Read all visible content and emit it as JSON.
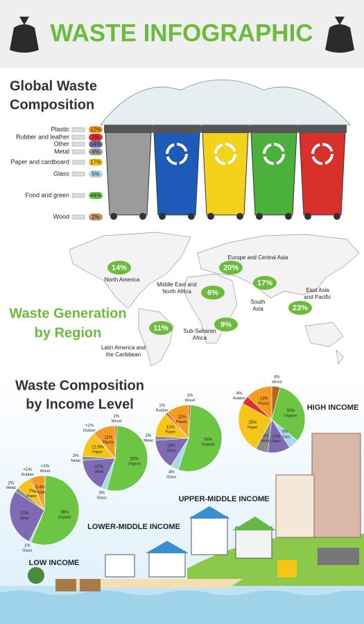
{
  "header": {
    "title": "WASTE INFOGRAPHIC"
  },
  "composition": {
    "title_lines": [
      "Global Waste",
      "Composition"
    ],
    "items": [
      {
        "label": "Plastic",
        "value": "12%",
        "color": "#f39c1f"
      },
      {
        "label": "Rubber and leather",
        "value": "2%",
        "color": "#d9342b"
      },
      {
        "label": "Other",
        "value": "14%",
        "color": "#7f6bb3"
      },
      {
        "label": "Metal",
        "value": "4%",
        "color": "#9a9a9a"
      },
      {
        "label": "Paper and cardboard",
        "value": "17%",
        "color": "#f5c518"
      },
      {
        "label": "Glass",
        "value": "5%",
        "color": "#a9d8ea"
      },
      {
        "label": "Food and green",
        "value": "44%",
        "color": "#6cc644"
      },
      {
        "label": "Wood",
        "value": "2%",
        "color": "#c8955e"
      }
    ]
  },
  "regions": {
    "title_lines": [
      "Waste Generation",
      "by Region"
    ],
    "items": [
      {
        "name_lines": [
          "North America"
        ],
        "value": "14%"
      },
      {
        "name_lines": [
          "Europe and Central Asia"
        ],
        "value": "20%"
      },
      {
        "name_lines": [
          "Middle East and",
          "North Africa"
        ],
        "value": "6%"
      },
      {
        "name_lines": [
          "South",
          "Asia"
        ],
        "value": "17%"
      },
      {
        "name_lines": [
          "East Asia",
          "and Pacific"
        ],
        "value": "23%"
      },
      {
        "name_lines": [
          "Latin America and",
          "the Caribbean"
        ],
        "value": "11%"
      },
      {
        "name_lines": [
          "Sub-Saharan",
          "Africa"
        ],
        "value": "9%"
      }
    ]
  },
  "income": {
    "title_lines": [
      "Waste Composition",
      "by Income Level"
    ],
    "levels": [
      {
        "name": "HIGH INCOME",
        "segments": [
          {
            "label": "Wood",
            "value": 4,
            "value_label": "4%",
            "color": "#b5651d"
          },
          {
            "label": "Organic",
            "value": 32,
            "value_label": "32%",
            "color": "#6cc644"
          },
          {
            "label": "Glass",
            "value": 5,
            "value_label": "5%",
            "color": "#a9d8ea"
          },
          {
            "label": "Other",
            "value": 11,
            "value_label": "11%",
            "color": "#7f6bb3"
          },
          {
            "label": "Metal",
            "value": 6,
            "value_label": "6%",
            "color": "#8a8a8a"
          },
          {
            "label": "Paper",
            "value": 25,
            "value_label": "25%",
            "color": "#f5c518"
          },
          {
            "label": "Rubber",
            "value": 4,
            "value_label": "4%",
            "color": "#d9342b"
          },
          {
            "label": "Plastic",
            "value": 13,
            "value_label": "13%",
            "color": "#f39c1f"
          }
        ]
      },
      {
        "name": "UPPER-MIDDLE INCOME",
        "segments": [
          {
            "label": "Wood",
            "value": 1,
            "value_label": "1%",
            "color": "#b5651d"
          },
          {
            "label": "Organic",
            "value": 54,
            "value_label": "54%",
            "color": "#6cc644"
          },
          {
            "label": "Glass",
            "value": 4,
            "value_label": "4%",
            "color": "#a9d8ea"
          },
          {
            "label": "Other",
            "value": 15,
            "value_label": "15%",
            "color": "#7f6bb3"
          },
          {
            "label": "Metal",
            "value": 2,
            "value_label": "2%",
            "color": "#8a8a8a"
          },
          {
            "label": "Paper",
            "value": 12,
            "value_label": "12%",
            "color": "#f5c518"
          },
          {
            "label": "Rubber",
            "value": 1,
            "value_label": "1%",
            "color": "#d9342b"
          },
          {
            "label": "Plastic",
            "value": 11,
            "value_label": "11%",
            "color": "#f39c1f"
          }
        ]
      },
      {
        "name": "LOWER-MIDDLE INCOME",
        "segments": [
          {
            "label": "Wood",
            "value": 1,
            "value_label": "1%",
            "color": "#b5651d"
          },
          {
            "label": "Organic",
            "value": 53,
            "value_label": "53%",
            "color": "#6cc644"
          },
          {
            "label": "Glass",
            "value": 3,
            "value_label": "3%",
            "color": "#a9d8ea"
          },
          {
            "label": "Other",
            "value": 17,
            "value_label": "17%",
            "color": "#7f6bb3"
          },
          {
            "label": "Metal",
            "value": 2,
            "value_label": "2%",
            "color": "#8a8a8a"
          },
          {
            "label": "Paper",
            "value": 12.5,
            "value_label": "12.5%",
            "color": "#f5c518"
          },
          {
            "label": "Rubber",
            "value": 0.5,
            "value_label": "<1%",
            "color": "#d9342b"
          },
          {
            "label": "Plastic",
            "value": 11,
            "value_label": "11%",
            "color": "#f39c1f"
          }
        ]
      },
      {
        "name": "LOW INCOME",
        "segments": [
          {
            "label": "Wood",
            "value": 0.5,
            "value_label": "<1%",
            "color": "#b5651d"
          },
          {
            "label": "Organic",
            "value": 56,
            "value_label": "56%",
            "color": "#6cc644"
          },
          {
            "label": "Glass",
            "value": 1,
            "value_label": "1%",
            "color": "#a9d8ea"
          },
          {
            "label": "Other",
            "value": 27,
            "value_label": "27%",
            "color": "#7f6bb3"
          },
          {
            "label": "Metal",
            "value": 2,
            "value_label": "2%",
            "color": "#8a8a8a"
          },
          {
            "label": "Paper",
            "value": 7,
            "value_label": "7%",
            "color": "#f5c518"
          },
          {
            "label": "Rubber",
            "value": 0.5,
            "value_label": "<1%",
            "color": "#d9342b"
          },
          {
            "label": "Plastic",
            "value": 6.4,
            "value_label": "6.4%",
            "color": "#f39c1f"
          }
        ]
      }
    ]
  }
}
